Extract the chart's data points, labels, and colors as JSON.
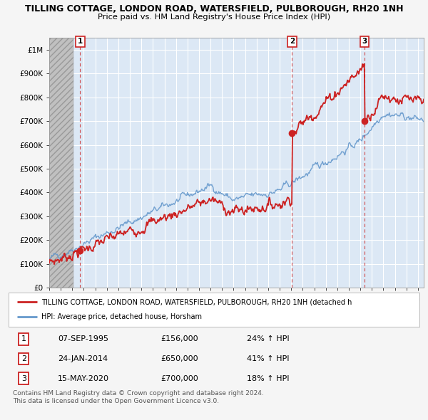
{
  "title": "TILLING COTTAGE, LONDON ROAD, WATERSFIELD, PULBOROUGH, RH20 1NH",
  "subtitle": "Price paid vs. HM Land Registry's House Price Index (HPI)",
  "ytick_values": [
    0,
    100000,
    200000,
    300000,
    400000,
    500000,
    600000,
    700000,
    800000,
    900000,
    1000000
  ],
  "ylabel_ticks": [
    "£0",
    "£100K",
    "£200K",
    "£300K",
    "£400K",
    "£500K",
    "£600K",
    "£700K",
    "£800K",
    "£900K",
    "£1M"
  ],
  "ylim": [
    0,
    1000000
  ],
  "xlim_start": 1993.0,
  "xlim_end": 2025.5,
  "sale_dates": [
    1995.69,
    2014.07,
    2020.37
  ],
  "sale_prices": [
    156000,
    650000,
    700000
  ],
  "sale_labels": [
    "1",
    "2",
    "3"
  ],
  "hpi_color": "#6699cc",
  "price_color": "#cc2222",
  "plot_bg_color": "#dce8f5",
  "hatch_color": "#c8c8c8",
  "grid_color": "#ffffff",
  "legend_label_red": "TILLING COTTAGE, LONDON ROAD, WATERSFIELD, PULBOROUGH, RH20 1NH (detached h",
  "legend_label_blue": "HPI: Average price, detached house, Horsham",
  "table_rows": [
    [
      "1",
      "07-SEP-1995",
      "£156,000",
      "24% ↑ HPI"
    ],
    [
      "2",
      "24-JAN-2014",
      "£650,000",
      "41% ↑ HPI"
    ],
    [
      "3",
      "15-MAY-2020",
      "£700,000",
      "18% ↑ HPI"
    ]
  ],
  "footer": "Contains HM Land Registry data © Crown copyright and database right 2024.\nThis data is licensed under the Open Government Licence v3.0."
}
